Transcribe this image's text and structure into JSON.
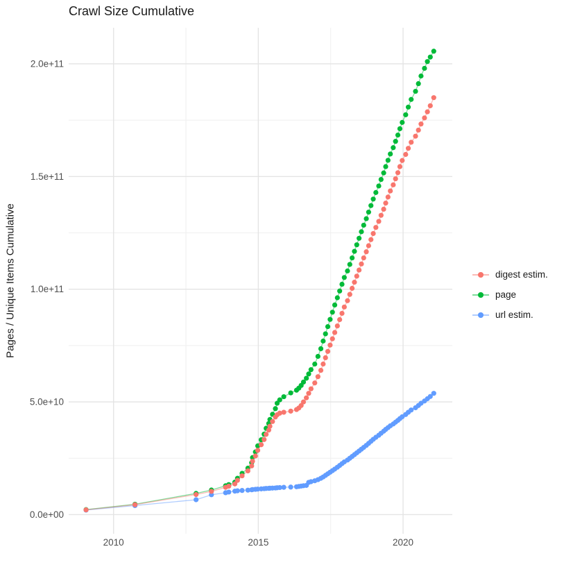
{
  "chart_data": {
    "type": "scatter",
    "title": "Crawl Size Cumulative",
    "xlabel": "",
    "ylabel": "Pages / Unique Items Cumulative",
    "grid": true,
    "legend_position": "right",
    "x_unit": "decimal year",
    "value_unit_multiplier": 1000000000.0,
    "x_domain": [
      2008.45,
      2021.7
    ],
    "y_domain_e9": [
      -8.5,
      216
    ],
    "x_ticks_major": [
      2010,
      2015,
      2020
    ],
    "x_tick_labels": [
      "2010",
      "2015",
      "2020"
    ],
    "x_ticks_minor": [
      2012.5,
      2017.5
    ],
    "y_ticks_major_e9": [
      0,
      50,
      100,
      150,
      200
    ],
    "y_tick_labels": [
      "0.0e+00",
      "5.0e+10",
      "1.0e+11",
      "1.5e+11",
      "2.0e+11"
    ],
    "y_ticks_minor_e9": [
      25,
      75,
      125,
      175
    ],
    "x": [
      2009.05,
      2010.74,
      2012.85,
      2013.38,
      2013.87,
      2013.98,
      2014.19,
      2014.28,
      2014.44,
      2014.64,
      2014.77,
      2014.8,
      2014.9,
      2014.98,
      2015.1,
      2015.2,
      2015.27,
      2015.36,
      2015.4,
      2015.49,
      2015.59,
      2015.65,
      2015.74,
      2015.88,
      2016.12,
      2016.32,
      2016.4,
      2016.48,
      2016.56,
      2016.66,
      2016.74,
      2016.82,
      2016.95,
      2017.06,
      2017.16,
      2017.24,
      2017.32,
      2017.4,
      2017.48,
      2017.56,
      2017.64,
      2017.73,
      2017.81,
      2017.89,
      2017.97,
      2018.08,
      2018.16,
      2018.24,
      2018.32,
      2018.4,
      2018.48,
      2018.56,
      2018.64,
      2018.73,
      2018.81,
      2018.89,
      2018.97,
      2019.06,
      2019.16,
      2019.24,
      2019.33,
      2019.4,
      2019.48,
      2019.56,
      2019.66,
      2019.74,
      2019.82,
      2019.89,
      2019.97,
      2020.09,
      2020.18,
      2020.28,
      2020.43,
      2020.53,
      2020.62,
      2020.74,
      2020.84,
      2020.94,
      2021.06
    ],
    "series": [
      {
        "name": "digest estim.",
        "color": "#F8766D",
        "values_e9": [
          2.1,
          4.4,
          8.9,
          10.3,
          12.1,
          12.6,
          13.6,
          15.2,
          17.2,
          19.4,
          21.6,
          23.7,
          26.0,
          28.5,
          31.0,
          33.3,
          35.6,
          37.5,
          39.2,
          41.3,
          43.3,
          44.3,
          45.0,
          45.4,
          45.9,
          46.6,
          47.3,
          48.4,
          50.0,
          51.8,
          53.8,
          55.8,
          58.4,
          61.2,
          64.0,
          66.8,
          69.6,
          72.4,
          75.2,
          78.0,
          80.8,
          83.7,
          86.5,
          89.3,
          92.1,
          94.9,
          97.7,
          100.4,
          103.1,
          105.8,
          108.5,
          111.2,
          113.9,
          116.6,
          119.3,
          122.0,
          124.7,
          127.4,
          130.1,
          132.8,
          135.5,
          138.2,
          140.9,
          143.6,
          146.3,
          149.0,
          151.7,
          154.4,
          157.1,
          159.8,
          162.5,
          165.2,
          167.9,
          170.6,
          173.3,
          176.0,
          178.7,
          181.4,
          185.0
        ]
      },
      {
        "name": "page",
        "color": "#00BA38",
        "values_e9": [
          2.2,
          4.6,
          9.4,
          10.9,
          12.8,
          13.3,
          14.4,
          16.1,
          18.3,
          20.6,
          23.0,
          25.3,
          27.8,
          30.5,
          33.2,
          35.7,
          38.3,
          40.4,
          42.2,
          44.5,
          47.0,
          49.4,
          50.9,
          52.3,
          54.0,
          55.2,
          56.1,
          57.3,
          58.8,
          60.5,
          62.4,
          64.3,
          66.8,
          70.2,
          73.6,
          77.0,
          80.2,
          83.4,
          86.6,
          89.8,
          93.0,
          96.2,
          99.2,
          102.2,
          105.2,
          108.1,
          111.0,
          113.9,
          116.8,
          119.7,
          122.6,
          125.5,
          128.4,
          131.3,
          134.2,
          137.1,
          140.0,
          142.9,
          145.8,
          148.7,
          151.6,
          154.4,
          157.2,
          160.0,
          162.8,
          165.6,
          168.4,
          171.2,
          174.0,
          177.4,
          180.8,
          184.2,
          187.8,
          191.2,
          194.6,
          198.0,
          201.0,
          203.0,
          205.6
        ]
      },
      {
        "name": "url estim.",
        "color": "#619CFF",
        "values_e9": [
          2.0,
          4.0,
          6.6,
          8.8,
          9.7,
          10.0,
          10.4,
          10.55,
          10.7,
          10.85,
          11.0,
          11.1,
          11.2,
          11.3,
          11.4,
          11.5,
          11.6,
          11.65,
          11.7,
          11.75,
          11.8,
          11.9,
          12.0,
          12.1,
          12.2,
          12.35,
          12.5,
          12.65,
          12.8,
          12.95,
          14.3,
          14.6,
          15.0,
          15.5,
          16.1,
          16.7,
          17.4,
          18.1,
          18.8,
          19.5,
          20.2,
          21.0,
          21.8,
          22.6,
          23.4,
          24.2,
          25.0,
          25.8,
          26.6,
          27.4,
          28.2,
          29.0,
          29.8,
          30.7,
          31.6,
          32.5,
          33.4,
          34.3,
          35.2,
          36.1,
          37.0,
          37.8,
          38.6,
          39.4,
          40.2,
          41.0,
          41.8,
          42.6,
          43.4,
          44.4,
          45.4,
          46.4,
          47.4,
          48.4,
          49.4,
          50.4,
          51.4,
          52.4,
          53.8
        ]
      }
    ],
    "style": {
      "background": "#ffffff",
      "grid_major_color": "#e4e4e4",
      "grid_minor_color": "#efefef",
      "axis_text_color": "#4d4d4d",
      "text_color": "#1a1a1a",
      "point_radius": 3.6,
      "line_opacity": 0.5,
      "draw_order": [
        "page",
        "url estim.",
        "digest estim."
      ]
    }
  }
}
